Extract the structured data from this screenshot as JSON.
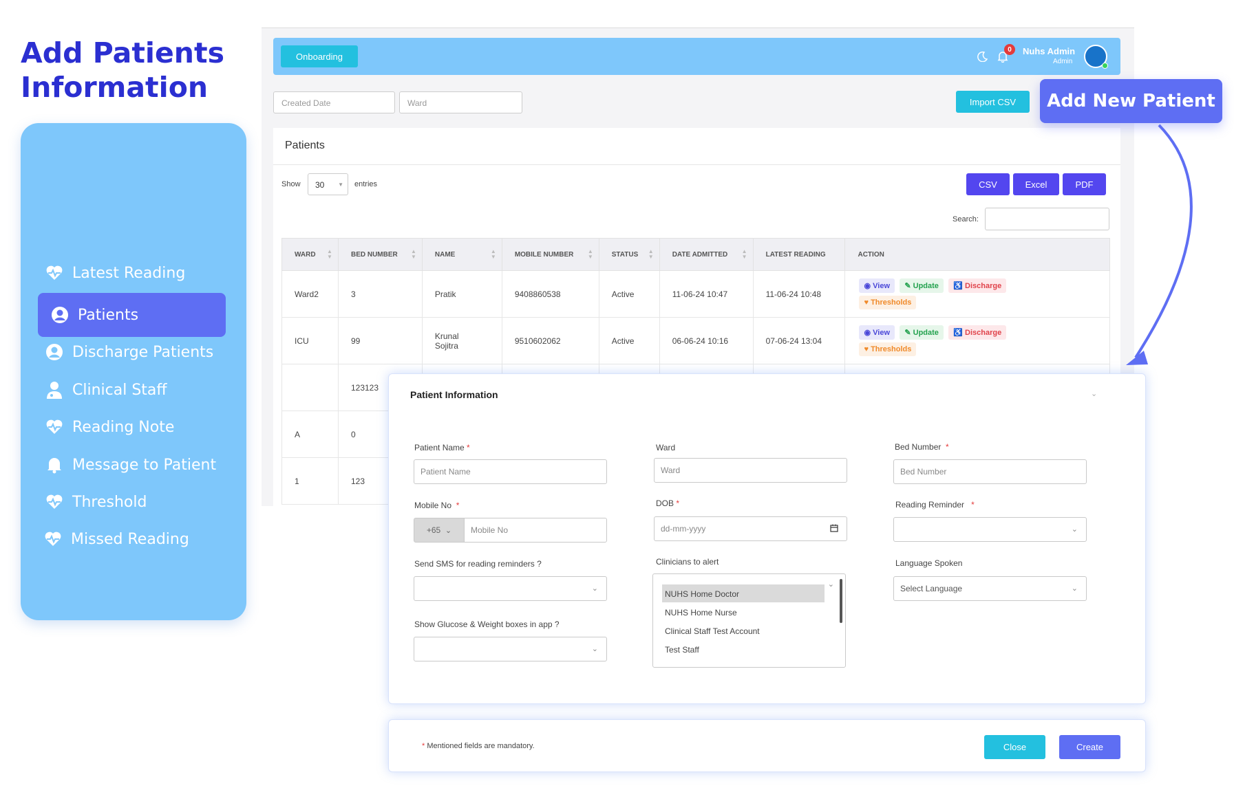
{
  "headline": {
    "line1": "Add Patients",
    "line2": "Information"
  },
  "sidebar": {
    "items": [
      {
        "label": "Latest Reading",
        "icon": "heart-pulse-icon"
      },
      {
        "label": "Patients",
        "icon": "user-circle-icon",
        "active": true
      },
      {
        "label": "Discharge Patients",
        "icon": "user-circle-icon"
      },
      {
        "label": "Clinical Staff",
        "icon": "doctor-icon"
      },
      {
        "label": "Reading Note",
        "icon": "heart-pulse-icon"
      },
      {
        "label": "Message to Patient",
        "icon": "bell-icon"
      },
      {
        "label": "Threshold",
        "icon": "heart-pulse-icon"
      },
      {
        "label": "Missed Reading",
        "icon": "heart-pulse-icon"
      }
    ]
  },
  "topbar": {
    "onboarding_label": "Onboarding",
    "notification_count": "0",
    "user_name": "Nuhs Admin",
    "user_role": "Admin"
  },
  "filters": {
    "created_date_placeholder": "Created Date",
    "ward_placeholder": "Ward"
  },
  "actions": {
    "import_csv": "Import CSV",
    "add_new_patient": "Add New Patient"
  },
  "patients_card": {
    "title": "Patients",
    "show_label": "Show",
    "entries_value": "30",
    "entries_label": "entries",
    "export": {
      "csv": "CSV",
      "excel": "Excel",
      "pdf": "PDF"
    },
    "search_label": "Search:",
    "columns": [
      "WARD",
      "BED NUMBER",
      "NAME",
      "MOBILE NUMBER",
      "STATUS",
      "DATE ADMITTED",
      "LATEST READING",
      "ACTION"
    ],
    "rows": [
      {
        "ward": "Ward2",
        "bed": "3",
        "name": "Pratik",
        "mobile": "9408860538",
        "status": "Active",
        "admitted": "11-06-24 10:47",
        "latest": "11-06-24 10:48"
      },
      {
        "ward": "ICU",
        "bed": "99",
        "name": "Krunal Sojitra",
        "mobile": "9510602062",
        "status": "Active",
        "admitted": "06-06-24 10:16",
        "latest": "07-06-24 13:04"
      },
      {
        "ward": "",
        "bed": "123123",
        "name": "",
        "mobile": "",
        "status": "",
        "admitted": "",
        "latest": ""
      },
      {
        "ward": "A",
        "bed": "0",
        "name": "",
        "mobile": "",
        "status": "",
        "admitted": "",
        "latest": ""
      },
      {
        "ward": "1",
        "bed": "123",
        "name": "",
        "mobile": "",
        "status": "",
        "admitted": "",
        "latest": ""
      }
    ],
    "action_labels": {
      "view": "View",
      "update": "Update",
      "discharge": "Discharge",
      "thresholds": "Thresholds"
    }
  },
  "modal": {
    "title": "Patient Information",
    "patient_name": {
      "label": "Patient Name",
      "placeholder": "Patient Name"
    },
    "ward": {
      "label": "Ward",
      "placeholder": "Ward"
    },
    "bed_number": {
      "label": "Bed Number",
      "placeholder": "Bed Number"
    },
    "mobile": {
      "label": "Mobile No",
      "country_code": "+65",
      "placeholder": "Mobile No"
    },
    "dob": {
      "label": "DOB",
      "placeholder": "dd-mm-yyyy"
    },
    "reading_reminder": {
      "label": "Reading Reminder"
    },
    "send_sms": {
      "label": "Send SMS for reading reminders ?"
    },
    "clinicians": {
      "label": "Clinicians to alert",
      "options": [
        "NUHS Home Doctor",
        "NUHS Home Nurse",
        "Clinical Staff Test Account",
        "Test Staff"
      ]
    },
    "language": {
      "label": "Language Spoken",
      "value": "Select Language"
    },
    "glucose_weight": {
      "label": "Show Glucose & Weight boxes in app ?"
    },
    "required_marker": "*"
  },
  "footer": {
    "note": "Mentioned fields are mandatory.",
    "close_label": "Close",
    "create_label": "Create"
  }
}
